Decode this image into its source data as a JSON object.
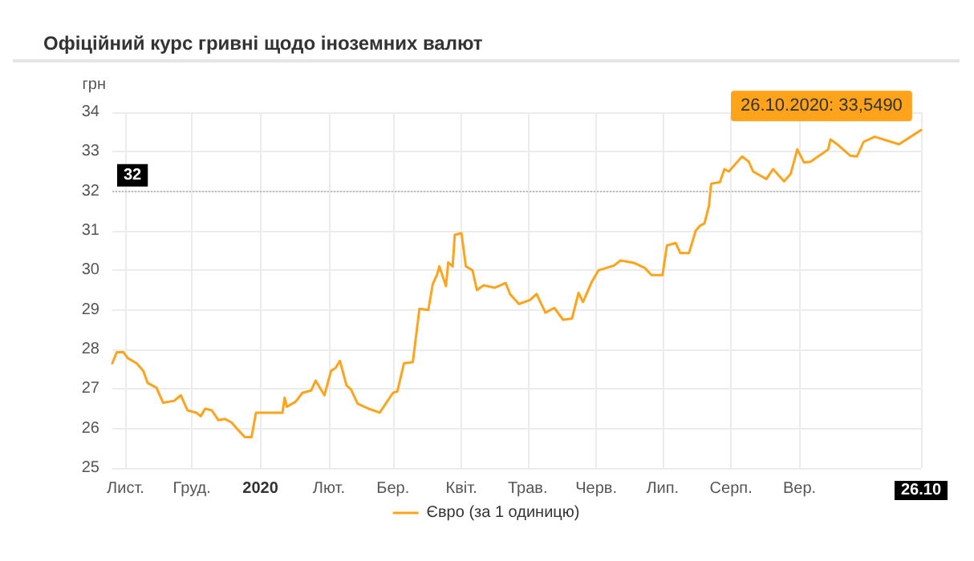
{
  "chart_data": {
    "type": "line",
    "title": "Офіційний курс гривні щодо іноземних валют",
    "ylabel": "грн",
    "x": [
      "2019-10-26",
      "2019-10-28",
      "2019-10-31",
      "2019-11-02",
      "2019-11-06",
      "2019-11-09",
      "2019-11-11",
      "2019-11-15",
      "2019-11-18",
      "2019-11-23",
      "2019-11-26",
      "2019-11-29",
      "2019-12-03",
      "2019-12-05",
      "2019-12-07",
      "2019-12-10",
      "2019-12-13",
      "2019-12-16",
      "2019-12-19",
      "2019-12-22",
      "2019-12-25",
      "2019-12-28",
      "2019-12-30",
      "2020-01-11",
      "2020-01-12",
      "2020-01-13",
      "2020-01-17",
      "2020-01-20",
      "2020-01-24",
      "2020-01-26",
      "2020-01-30",
      "2020-02-02",
      "2020-02-04",
      "2020-02-06",
      "2020-02-09",
      "2020-02-11",
      "2020-02-14",
      "2020-02-19",
      "2020-02-24",
      "2020-03-01",
      "2020-03-03",
      "2020-03-06",
      "2020-03-10",
      "2020-03-13",
      "2020-03-17",
      "2020-03-19",
      "2020-03-21",
      "2020-03-22",
      "2020-03-25",
      "2020-03-26",
      "2020-03-28",
      "2020-03-29",
      "2020-04-01",
      "2020-04-03",
      "2020-04-06",
      "2020-04-08",
      "2020-04-11",
      "2020-04-16",
      "2020-04-21",
      "2020-04-23",
      "2020-04-27",
      "2020-05-02",
      "2020-05-05",
      "2020-05-09",
      "2020-05-13",
      "2020-05-17",
      "2020-05-21",
      "2020-05-24",
      "2020-05-26",
      "2020-05-30",
      "2020-06-02",
      "2020-06-09",
      "2020-06-12",
      "2020-06-18",
      "2020-06-23",
      "2020-06-26",
      "2020-07-01",
      "2020-07-03",
      "2020-07-07",
      "2020-07-09",
      "2020-07-13",
      "2020-07-16",
      "2020-07-18",
      "2020-07-20",
      "2020-07-22",
      "2020-07-23",
      "2020-07-27",
      "2020-07-29",
      "2020-07-31",
      "2020-08-03",
      "2020-08-06",
      "2020-08-09",
      "2020-08-11",
      "2020-08-17",
      "2020-08-20",
      "2020-08-25",
      "2020-08-28",
      "2020-08-31",
      "2020-09-03",
      "2020-09-06",
      "2020-09-11",
      "2020-09-14",
      "2020-09-15",
      "2020-09-18",
      "2020-09-24",
      "2020-09-27",
      "2020-09-30",
      "2020-10-05",
      "2020-10-16",
      "2020-10-23",
      "2020-10-26"
    ],
    "series": [
      {
        "name": "Євро (за 1 одиницю)",
        "color": "#ffa31a",
        "values": [
          27.65,
          27.93,
          27.93,
          27.78,
          27.65,
          27.46,
          27.15,
          27.03,
          26.65,
          26.7,
          26.84,
          26.46,
          26.4,
          26.31,
          26.5,
          26.46,
          26.21,
          26.24,
          26.15,
          25.96,
          25.78,
          25.78,
          26.4,
          26.4,
          26.78,
          26.55,
          26.68,
          26.9,
          26.96,
          27.21,
          26.84,
          27.46,
          27.53,
          27.71,
          27.09,
          26.99,
          26.63,
          26.5,
          26.4,
          26.9,
          26.94,
          27.65,
          27.68,
          29.03,
          29.0,
          29.65,
          29.9,
          30.1,
          29.6,
          30.2,
          30.1,
          30.9,
          30.94,
          30.1,
          30.0,
          29.5,
          29.62,
          29.56,
          29.68,
          29.4,
          29.15,
          29.25,
          29.4,
          28.93,
          29.05,
          28.75,
          28.78,
          29.43,
          29.2,
          29.71,
          30.0,
          30.12,
          30.25,
          30.19,
          30.06,
          29.88,
          29.88,
          30.63,
          30.69,
          30.44,
          30.44,
          31.0,
          31.13,
          31.19,
          31.63,
          32.19,
          32.23,
          32.56,
          32.5,
          32.69,
          32.88,
          32.75,
          32.5,
          32.31,
          32.56,
          32.25,
          32.44,
          33.06,
          32.73,
          32.75,
          32.94,
          33.06,
          33.31,
          33.19,
          32.9,
          32.88,
          33.25,
          33.38,
          33.19,
          33.44,
          33.549
        ]
      }
    ],
    "xlim": [
      "2019-10-26",
      "2020-10-26"
    ],
    "xticks": [
      {
        "value": "2019-11-01",
        "label": "Лист."
      },
      {
        "value": "2019-12-01",
        "label": "Груд."
      },
      {
        "value": "2020-01-01",
        "label": "2020"
      },
      {
        "value": "2020-02-01",
        "label": "Лют."
      },
      {
        "value": "2020-03-01",
        "label": "Бер."
      },
      {
        "value": "2020-04-01",
        "label": "Квіт."
      },
      {
        "value": "2020-05-01",
        "label": "Трав."
      },
      {
        "value": "2020-06-01",
        "label": "Черв."
      },
      {
        "value": "2020-07-01",
        "label": "Лип."
      },
      {
        "value": "2020-08-01",
        "label": "Серп."
      },
      {
        "value": "2020-09-01",
        "label": "Вер."
      },
      {
        "value": "2020-10-26",
        "label": "26.10"
      }
    ],
    "ylim": [
      25,
      34
    ],
    "yticks": [
      25,
      26,
      27,
      28,
      29,
      30,
      31,
      32,
      33,
      34
    ],
    "ref_lines": [
      {
        "axis": "y",
        "value": 32,
        "label": "32",
        "line_style": "dotted",
        "color": "#bbbbbb"
      }
    ],
    "annotations": [
      {
        "text": "26.10.2020: 33,5490",
        "x": "2020-10-26",
        "y": 33.549
      }
    ],
    "grid": true,
    "legend": "bottom",
    "marker": "none",
    "line_style": "solid"
  }
}
